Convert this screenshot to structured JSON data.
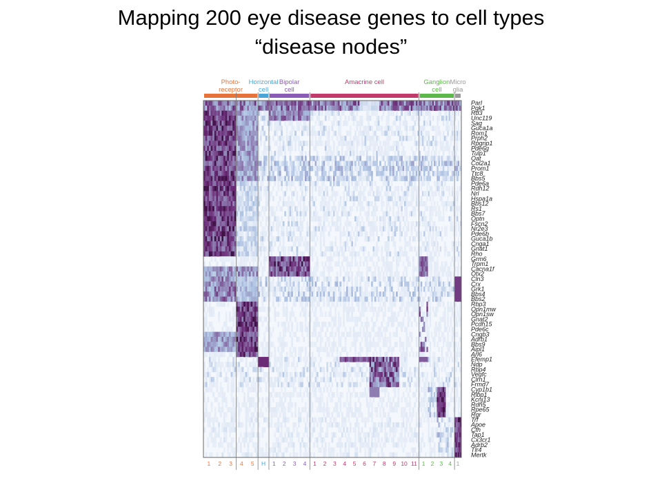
{
  "slide": {
    "title_line1": "Mapping 200 eye disease genes to cell types",
    "title_line2": "“disease nodes”"
  },
  "chart_data": {
    "type": "heatmap",
    "title": "",
    "groups": [
      {
        "label": [
          "Photo-",
          "receptor"
        ],
        "color": "#e8733a",
        "clusters": [
          "1",
          "2",
          "3",
          "4",
          "5"
        ]
      },
      {
        "label": [
          "Horizontal",
          "cell"
        ],
        "color": "#4aa6d8",
        "clusters": [
          "H"
        ]
      },
      {
        "label": [
          "Bipolar",
          "cell"
        ],
        "color": "#8a5cb8",
        "clusters": [
          "1",
          "2",
          "3",
          "4"
        ]
      },
      {
        "label": [
          "Amacrine cell"
        ],
        "color": "#c23a6a",
        "clusters": [
          "1",
          "2",
          "3",
          "4",
          "5",
          "6",
          "7",
          "8",
          "9",
          "10",
          "11"
        ]
      },
      {
        "label": [
          "Ganglion",
          "cell"
        ],
        "color": "#5cb84a",
        "clusters": [
          "1",
          "2",
          "3",
          "4"
        ]
      },
      {
        "label": [
          "Micro",
          "glia"
        ],
        "color": "#9a9a9a",
        "clusters": [
          "1"
        ]
      }
    ],
    "genes": [
      "Parl",
      "Pgk1",
      "Rd3",
      "Unc119",
      "Sag",
      "Guca1a",
      "Rom1",
      "Prph2",
      "Rpgrip1",
      "Pde6g",
      "Tulp1",
      "Oat",
      "Col2a1",
      "Prom1",
      "Ttc8",
      "Bbs5",
      "Pde6a",
      "Rdh12",
      "Nrl",
      "Hspa1a",
      "Bbs12",
      "Rs1",
      "Bbs7",
      "Optn",
      "Fscn2",
      "Nr2e3",
      "Pde6b",
      "Guca1b",
      "Cnga1",
      "Gnat1",
      "Rho",
      "Grm6",
      "Trpm1",
      "Cacna1f",
      "Otx2",
      "Cln3",
      "Crx",
      "Grk1",
      "Bbs4",
      "Bbs2",
      "Rbp3",
      "Opn1mw",
      "Opn1sw",
      "Gnat2",
      "Pcdh15",
      "Pde6c",
      "Cngb3",
      "Adrb1",
      "Bbs9",
      "Aipl1",
      "Arl6",
      "Efemp1",
      "Ndp",
      "Rbp4",
      "Vegfc",
      "Clrn1",
      "Frmd7",
      "Cyp1b1",
      "Rlbp1",
      "Kcnj13",
      "Rdh5",
      "Rpe65",
      "Rgr",
      "Trf",
      "Apoe",
      "Cfh",
      "Tap1",
      "Cx3cr1",
      "Adrb2",
      "Tlr4",
      "Mertk"
    ],
    "gene_blocks": [
      {
        "genes": [
          0,
          1
        ],
        "high_in": [
          "all clusters"
        ]
      },
      {
        "genes": [
          2,
          30
        ],
        "high_in": [
          "Photo-receptor 1-3",
          "Photo-receptor 4-5 (partial)"
        ]
      },
      {
        "genes": [
          31,
          34
        ],
        "high_in": [
          "Bipolar cell 1-4"
        ]
      },
      {
        "genes": [
          35,
          39
        ],
        "high_in": [
          "Photo-receptor 1-3",
          "Micro glia 1"
        ]
      },
      {
        "genes": [
          40,
          50
        ],
        "high_in": [
          "Photo-receptor 4-5"
        ]
      },
      {
        "genes": [
          51,
          56
        ],
        "high_in": [
          "Horizontal cell",
          "Amacrine cell 4-9"
        ]
      },
      {
        "genes": [
          57,
          62
        ],
        "high_in": [
          "Ganglion cell 3"
        ]
      },
      {
        "genes": [
          63,
          70
        ],
        "high_in": [
          "Micro glia 1"
        ]
      }
    ],
    "color_scale": {
      "low": "#f4f8fd",
      "mid": "#aabfe0",
      "high": "#6b2a76",
      "max": "#3a0f40"
    }
  }
}
